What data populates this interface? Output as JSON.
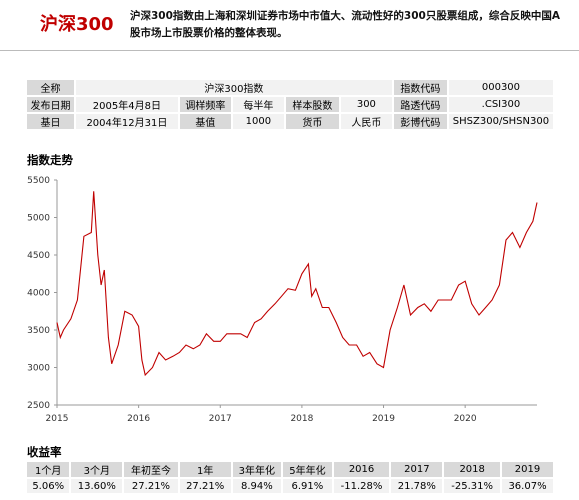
{
  "header": {
    "title": "沪深300",
    "description": "沪深300指数由上海和深圳证券市场中市值大、流动性好的300只股票组成，综合反映中国A股市场上市股票价格的整体表现。"
  },
  "info": {
    "rows": [
      [
        "全称",
        "沪深300指数",
        "指数代码",
        "000300"
      ],
      [
        "发布日期",
        "2005年4月8日",
        "调样频率",
        "每半年",
        "样本股数",
        "300",
        "路透代码",
        ".CSI300"
      ],
      [
        "基日",
        "2004年12月31日",
        "基值",
        "1000",
        "货币",
        "人民币",
        "彭博代码",
        "SHSZ300/SHSN300"
      ]
    ]
  },
  "chart_data": {
    "type": "line",
    "title": "指数走势",
    "color": "#c00000",
    "x": [
      2015.0,
      2015.04,
      2015.08,
      2015.17,
      2015.25,
      2015.33,
      2015.42,
      2015.45,
      2015.5,
      2015.54,
      2015.58,
      2015.63,
      2015.67,
      2015.75,
      2015.83,
      2015.92,
      2016.0,
      2016.04,
      2016.08,
      2016.17,
      2016.25,
      2016.33,
      2016.42,
      2016.5,
      2016.58,
      2016.67,
      2016.75,
      2016.83,
      2016.92,
      2017.0,
      2017.08,
      2017.17,
      2017.25,
      2017.33,
      2017.42,
      2017.5,
      2017.58,
      2017.67,
      2017.75,
      2017.83,
      2017.92,
      2018.0,
      2018.08,
      2018.12,
      2018.17,
      2018.25,
      2018.33,
      2018.42,
      2018.5,
      2018.58,
      2018.67,
      2018.75,
      2018.83,
      2018.92,
      2019.0,
      2019.08,
      2019.17,
      2019.25,
      2019.33,
      2019.42,
      2019.5,
      2019.58,
      2019.67,
      2019.75,
      2019.83,
      2019.92,
      2020.0,
      2020.08,
      2020.17,
      2020.25,
      2020.33,
      2020.42,
      2020.5,
      2020.58,
      2020.67,
      2020.75,
      2020.83,
      2020.88
    ],
    "values": [
      3600,
      3400,
      3500,
      3650,
      3900,
      4750,
      4800,
      5350,
      4500,
      4100,
      4300,
      3400,
      3050,
      3300,
      3750,
      3700,
      3550,
      3100,
      2900,
      3000,
      3200,
      3100,
      3150,
      3200,
      3300,
      3250,
      3300,
      3450,
      3350,
      3350,
      3450,
      3450,
      3450,
      3400,
      3600,
      3650,
      3750,
      3850,
      3950,
      4050,
      4030,
      4250,
      4380,
      3950,
      4050,
      3800,
      3800,
      3600,
      3400,
      3300,
      3300,
      3150,
      3200,
      3050,
      3000,
      3500,
      3800,
      4100,
      3700,
      3800,
      3850,
      3750,
      3900,
      3900,
      3900,
      4100,
      4150,
      3850,
      3700,
      3800,
      3900,
      4100,
      4700,
      4800,
      4600,
      4800,
      4950,
      5200
    ],
    "xlim": [
      2015,
      2020.88
    ],
    "xticks": [
      2015,
      2016,
      2017,
      2018,
      2019,
      2020
    ],
    "ylim": [
      2500,
      5500
    ],
    "yticks": [
      2500,
      3000,
      3500,
      4000,
      4500,
      5000,
      5500
    ]
  },
  "returns": {
    "title": "收益率",
    "headers": [
      "1个月",
      "3个月",
      "年初至今",
      "1年",
      "3年年化",
      "5年年化",
      "2016",
      "2017",
      "2018",
      "2019"
    ],
    "values": [
      "5.06%",
      "13.60%",
      "27.21%",
      "27.21%",
      "8.94%",
      "6.91%",
      "-11.28%",
      "21.78%",
      "-25.31%",
      "36.07%"
    ]
  }
}
